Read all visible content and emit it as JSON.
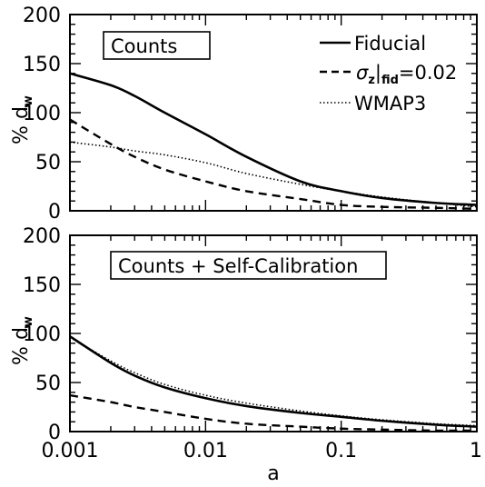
{
  "chart_data": [
    {
      "type": "line",
      "panel_label": "Counts",
      "ylabel_parts": [
        "%",
        "d",
        "w"
      ],
      "xlabel": "",
      "xscale": "log",
      "xlim": [
        0.001,
        1
      ],
      "ylim": [
        0,
        200
      ],
      "yticks": [
        "0",
        "50",
        "100",
        "150",
        "200"
      ],
      "xticks": [
        "0.001",
        "0.01",
        "0.1",
        "1"
      ],
      "legend_position": "top-right",
      "series": [
        {
          "name": "Fiducial",
          "style": "solid",
          "x": [
            0.001,
            0.002,
            0.003,
            0.005,
            0.01,
            0.02,
            0.05,
            0.1,
            0.2,
            0.5,
            1
          ],
          "y": [
            140,
            128,
            117,
            100,
            78,
            55,
            30,
            20,
            13,
            8,
            6
          ]
        },
        {
          "name": "σz|fid=0.02",
          "style": "dashed",
          "x": [
            0.001,
            0.002,
            0.003,
            0.005,
            0.01,
            0.02,
            0.05,
            0.1,
            0.2,
            0.5,
            1
          ],
          "y": [
            93,
            68,
            55,
            42,
            30,
            20,
            12,
            6,
            4,
            3,
            2
          ]
        },
        {
          "name": "WMAP3",
          "style": "dotted",
          "x": [
            0.001,
            0.002,
            0.003,
            0.005,
            0.01,
            0.02,
            0.05,
            0.1,
            0.2,
            0.5,
            1
          ],
          "y": [
            70,
            65,
            61,
            57,
            49,
            38,
            27,
            20,
            14,
            8,
            4
          ]
        }
      ]
    },
    {
      "type": "line",
      "panel_label": "Counts + Self-Calibration",
      "ylabel_parts": [
        "%",
        "d",
        "w"
      ],
      "xlabel": "a",
      "xscale": "log",
      "xlim": [
        0.001,
        1
      ],
      "ylim": [
        0,
        200
      ],
      "yticks": [
        "0",
        "50",
        "100",
        "150",
        "200"
      ],
      "xticks": [
        "0.001",
        "0.01",
        "0.1",
        "1"
      ],
      "series": [
        {
          "name": "Fiducial",
          "style": "solid",
          "x": [
            0.001,
            0.002,
            0.003,
            0.005,
            0.01,
            0.02,
            0.05,
            0.1,
            0.2,
            0.5,
            1
          ],
          "y": [
            97,
            70,
            57,
            45,
            34,
            26,
            19,
            15,
            11,
            7,
            5
          ]
        },
        {
          "name": "σz|fid=0.02",
          "style": "dashed",
          "x": [
            0.001,
            0.002,
            0.003,
            0.005,
            0.01,
            0.02,
            0.05,
            0.1,
            0.2,
            0.5,
            1
          ],
          "y": [
            37,
            30,
            25,
            20,
            13,
            8,
            5,
            3,
            2,
            1,
            1
          ]
        },
        {
          "name": "WMAP3",
          "style": "dotted",
          "x": [
            0.001,
            0.002,
            0.003,
            0.005,
            0.01,
            0.02,
            0.05,
            0.1,
            0.2,
            0.5,
            1
          ],
          "y": [
            96,
            72,
            60,
            48,
            37,
            29,
            21,
            16,
            12,
            8,
            6
          ]
        }
      ]
    }
  ],
  "legend": {
    "entries": [
      {
        "style": "solid",
        "label": "Fiducial"
      },
      {
        "style": "dashed",
        "label_symbol": "σ",
        "label_sub": "z",
        "label_bar": "|",
        "label_sub2": "fid",
        "label_rest": "=0.02"
      },
      {
        "style": "dotted",
        "label": "WMAP3"
      }
    ]
  },
  "colors": {
    "ink": "#000000",
    "background": "#ffffff"
  }
}
